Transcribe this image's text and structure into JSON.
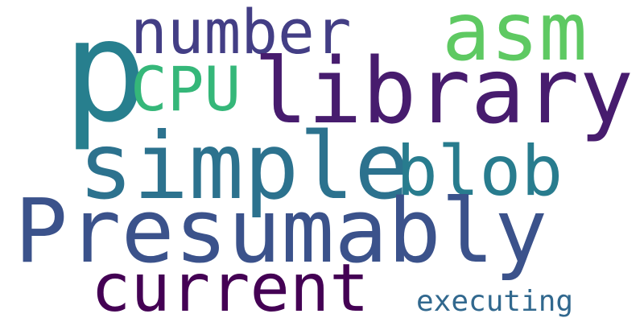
{
  "words": {
    "p": {
      "text": "p",
      "color": "#277f8e"
    },
    "library": {
      "text": "library",
      "color": "#471c6e"
    },
    "number": {
      "text": "number",
      "color": "#433e85"
    },
    "asm": {
      "text": "asm",
      "color": "#5ec962"
    },
    "cpu": {
      "text": "CPU",
      "color": "#35b779"
    },
    "simple": {
      "text": "simple",
      "color": "#2c728e"
    },
    "blob": {
      "text": "blob",
      "color": "#287c8e"
    },
    "presumably": {
      "text": "Presumably",
      "color": "#3b528b"
    },
    "current": {
      "text": "current",
      "color": "#440154"
    },
    "executing": {
      "text": "executing",
      "color": "#31688e"
    }
  }
}
